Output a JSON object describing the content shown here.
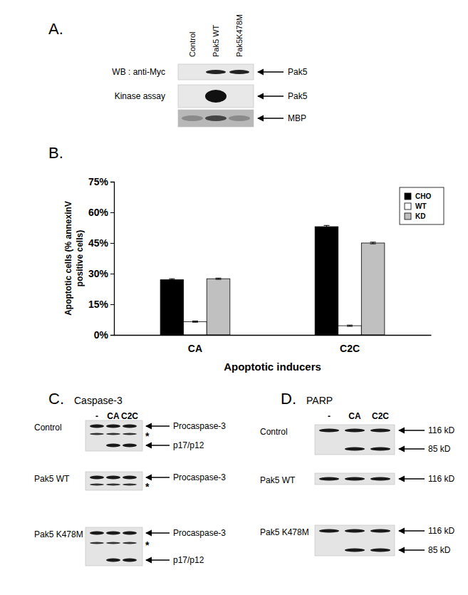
{
  "panel_a": {
    "label": "A.",
    "lanes": [
      "Control",
      "Pak5 WT",
      "Pak5K478M"
    ],
    "rows": [
      {
        "label": "WB : anti-Myc",
        "band": "Pak5"
      },
      {
        "label": "Kinase assay",
        "band": "Pak5"
      },
      {
        "band": "MBP"
      }
    ]
  },
  "panel_b_label": "B.",
  "chart_data": {
    "type": "bar",
    "categories": [
      "CA",
      "C2C"
    ],
    "series": [
      {
        "name": "CHO",
        "color": "#000000",
        "values": [
          27,
          53
        ],
        "errors": [
          0.5,
          0.6
        ]
      },
      {
        "name": "WT",
        "color": "#ffffff",
        "values": [
          6.5,
          4.5
        ],
        "errors": [
          0.3,
          0.3
        ]
      },
      {
        "name": "KD",
        "color": "#c0c0c0",
        "values": [
          27.5,
          45
        ],
        "errors": [
          0.3,
          0.4
        ]
      }
    ],
    "ylim": [
      0,
      75
    ],
    "yticks": [
      {
        "value": 0,
        "label": "0%"
      },
      {
        "value": 15,
        "label": "15%"
      },
      {
        "value": 30,
        "label": "30%"
      },
      {
        "value": 45,
        "label": "45%"
      },
      {
        "value": 60,
        "label": "60%"
      },
      {
        "value": 75,
        "label": "75%"
      }
    ],
    "ylabel": [
      "Apoptotic cells (% annexinV",
      "positive cells)"
    ],
    "xlabel": "Apoptotic inducers",
    "legend": "upper right",
    "grid": false
  },
  "panel_c": {
    "label": "C.",
    "title": "Caspase-3",
    "lanes": [
      "-",
      "CA",
      "C2C"
    ],
    "blots": [
      {
        "name": "Control",
        "bands": [
          "Procaspase-3",
          "*",
          "p17/p12"
        ]
      },
      {
        "name": "Pak5 WT",
        "bands": [
          "Procaspase-3",
          "*"
        ]
      },
      {
        "name": "Pak5 K478M",
        "bands": [
          "Procaspase-3",
          "*",
          "p17/p12"
        ]
      }
    ]
  },
  "panel_d": {
    "label": "D.",
    "title": "PARP",
    "lanes": [
      "-",
      "CA",
      "C2C"
    ],
    "blots": [
      {
        "name": "Control",
        "bands": [
          "116 kD",
          "85 kD"
        ]
      },
      {
        "name": "Pak5 WT",
        "bands": [
          "116 kD"
        ]
      },
      {
        "name": "Pak5 K478M",
        "bands": [
          "116 kD",
          "85 kD"
        ]
      }
    ]
  }
}
